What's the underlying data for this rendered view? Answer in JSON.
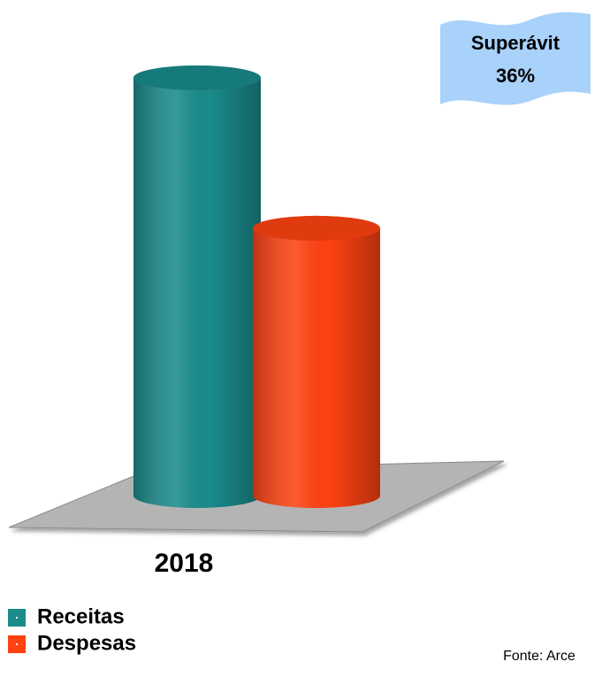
{
  "chart_data": {
    "type": "bar",
    "categories": [
      "2018"
    ],
    "series": [
      {
        "name": "Receitas",
        "color": "#1b8b8b",
        "values": [
          100
        ]
      },
      {
        "name": "Despesas",
        "color": "#ff4212",
        "values": [
          64
        ]
      }
    ],
    "annotation": [
      "Superávit",
      "36%"
    ],
    "source": "Fonte: Arce",
    "legend": "bottom-left"
  }
}
